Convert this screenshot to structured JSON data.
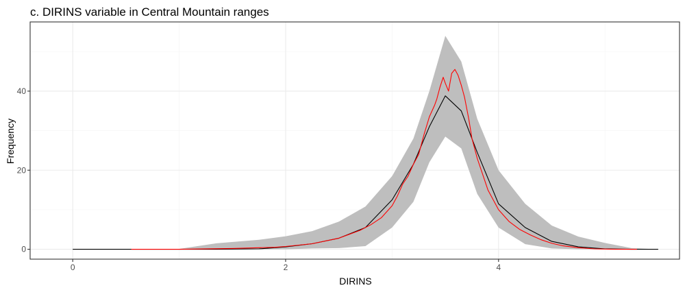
{
  "chart_data": {
    "type": "line",
    "title": "c. DIRINS variable in Central Mountain ranges",
    "xlabel": "DIRINS",
    "ylabel": "Frequency",
    "xlim": [
      -0.4,
      5.7
    ],
    "ylim": [
      -2.5,
      57.5
    ],
    "x_ticks": [
      0,
      2,
      4
    ],
    "y_ticks": [
      0,
      20,
      40
    ],
    "grid": true,
    "legend": "none",
    "colors": {
      "band": "#bebebe",
      "mean_line": "#000000",
      "observed_line": "#ff0000"
    },
    "band": {
      "x": [
        0.0,
        0.25,
        0.5,
        0.75,
        1.0,
        1.35,
        1.75,
        2.0,
        2.25,
        2.5,
        2.75,
        3.0,
        3.2,
        3.35,
        3.5,
        3.65,
        3.8,
        4.0,
        4.25,
        4.5,
        4.75,
        5.0,
        5.25,
        5.5
      ],
      "upper": [
        0,
        0,
        0,
        0,
        0.1,
        1.5,
        2.4,
        3.3,
        4.6,
        7.0,
        10.8,
        18.5,
        28.0,
        40.0,
        54.0,
        47.5,
        33.0,
        20.0,
        11.5,
        6.0,
        3.2,
        1.6,
        0.3,
        0
      ],
      "lower": [
        0,
        0,
        0,
        0,
        0,
        0,
        0,
        0,
        0.2,
        0.3,
        0.8,
        5.5,
        12.0,
        22.0,
        28.5,
        25.5,
        14.0,
        5.5,
        1.3,
        0.2,
        0,
        0,
        0,
        0
      ]
    },
    "series": [
      {
        "x": [
          0.0,
          0.25,
          0.5,
          0.75,
          1.0,
          1.35,
          1.75,
          2.0,
          2.25,
          2.5,
          2.75,
          3.0,
          3.2,
          3.35,
          3.5,
          3.65,
          3.8,
          4.0,
          4.25,
          4.5,
          4.75,
          5.0,
          5.25,
          5.5
        ],
        "y": [
          0,
          0,
          0,
          0,
          0,
          0,
          0.1,
          0.6,
          1.4,
          2.8,
          5.5,
          12.5,
          21.5,
          31.0,
          38.8,
          35.0,
          24.5,
          11.5,
          5.5,
          2.0,
          0.6,
          0.1,
          0,
          0
        ]
      },
      {
        "x": [
          0.55,
          1.0,
          1.5,
          1.9,
          2.0,
          2.25,
          2.5,
          2.7,
          2.8,
          2.9,
          3.0,
          3.05,
          3.1,
          3.15,
          3.2,
          3.25,
          3.3,
          3.35,
          3.4,
          3.42,
          3.45,
          3.48,
          3.5,
          3.53,
          3.56,
          3.59,
          3.62,
          3.65,
          3.68,
          3.72,
          3.75,
          3.8,
          3.85,
          3.9,
          4.0,
          4.1,
          4.2,
          4.3,
          4.4,
          4.5,
          4.6,
          4.75,
          4.9,
          5.1,
          5.3
        ],
        "y": [
          0,
          0,
          0.2,
          0.5,
          0.7,
          1.4,
          2.8,
          4.8,
          6.2,
          8.0,
          11.0,
          13.5,
          16.5,
          18.5,
          21.5,
          24.0,
          29.0,
          33.5,
          36.5,
          38.0,
          41.0,
          43.5,
          42.0,
          40.0,
          44.5,
          45.5,
          44.0,
          41.5,
          38.5,
          33.0,
          28.0,
          23.0,
          19.0,
          15.0,
          10.0,
          7.0,
          5.0,
          3.6,
          2.4,
          1.5,
          0.9,
          0.4,
          0.1,
          0,
          0
        ]
      }
    ]
  }
}
